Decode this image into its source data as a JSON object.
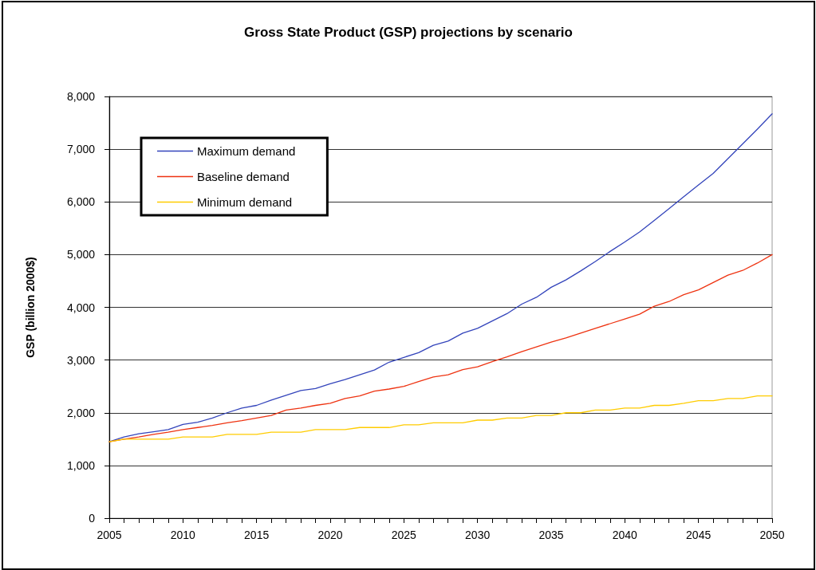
{
  "chart_data": {
    "type": "line",
    "title": "Gross State Product (GSP) projections by scenario",
    "ylabel": "GSP (billion 2000$)",
    "x": [
      2005,
      2006,
      2007,
      2008,
      2009,
      2010,
      2011,
      2012,
      2013,
      2014,
      2015,
      2016,
      2017,
      2018,
      2019,
      2020,
      2021,
      2022,
      2023,
      2024,
      2025,
      2026,
      2027,
      2028,
      2029,
      2030,
      2031,
      2032,
      2033,
      2034,
      2035,
      2036,
      2037,
      2038,
      2039,
      2040,
      2041,
      2042,
      2043,
      2044,
      2045,
      2046,
      2047,
      2048,
      2049,
      2050
    ],
    "series": [
      {
        "name": "Maximum demand",
        "color": "#3344bb",
        "values": [
          1450,
          1540,
          1600,
          1640,
          1680,
          1780,
          1820,
          1900,
          2000,
          2090,
          2140,
          2240,
          2330,
          2420,
          2460,
          2550,
          2630,
          2720,
          2810,
          2960,
          3050,
          3140,
          3280,
          3360,
          3510,
          3600,
          3740,
          3880,
          4060,
          4190,
          4380,
          4520,
          4690,
          4870,
          5060,
          5240,
          5430,
          5650,
          5870,
          6100,
          6320,
          6540,
          6820,
          7100,
          7380,
          7670
        ]
      },
      {
        "name": "Baseline demand",
        "color": "#ee3311",
        "values": [
          1450,
          1500,
          1540,
          1590,
          1630,
          1680,
          1720,
          1760,
          1810,
          1850,
          1900,
          1950,
          2050,
          2090,
          2140,
          2180,
          2270,
          2320,
          2410,
          2450,
          2500,
          2590,
          2680,
          2720,
          2820,
          2870,
          2970,
          3060,
          3160,
          3250,
          3340,
          3420,
          3510,
          3600,
          3690,
          3780,
          3870,
          4020,
          4110,
          4240,
          4330,
          4470,
          4610,
          4700,
          4840,
          5000
        ]
      },
      {
        "name": "Minimum demand",
        "color": "#ffcc00",
        "values": [
          1450,
          1500,
          1500,
          1500,
          1500,
          1540,
          1540,
          1540,
          1590,
          1590,
          1590,
          1630,
          1630,
          1630,
          1680,
          1680,
          1680,
          1720,
          1720,
          1720,
          1770,
          1770,
          1810,
          1810,
          1810,
          1860,
          1860,
          1900,
          1900,
          1950,
          1950,
          2000,
          2000,
          2050,
          2050,
          2090,
          2090,
          2140,
          2140,
          2180,
          2230,
          2230,
          2270,
          2270,
          2320,
          2320
        ]
      }
    ],
    "xlim": [
      2005,
      2050
    ],
    "xticks": [
      2005,
      {
        "value": 2006,
        "label": null
      },
      {
        "value": 2007,
        "label": null
      },
      {
        "value": 2008,
        "label": null
      },
      {
        "value": 2009,
        "label": null
      },
      2010,
      {
        "value": 2011,
        "label": null
      },
      {
        "value": 2012,
        "label": null
      },
      {
        "value": 2013,
        "label": null
      },
      {
        "value": 2014,
        "label": null
      },
      2015,
      {
        "value": 2016,
        "label": null
      },
      {
        "value": 2017,
        "label": null
      },
      {
        "value": 2018,
        "label": null
      },
      {
        "value": 2019,
        "label": null
      },
      2020,
      {
        "value": 2021,
        "label": null
      },
      {
        "value": 2022,
        "label": null
      },
      {
        "value": 2023,
        "label": null
      },
      {
        "value": 2024,
        "label": null
      },
      2025,
      {
        "value": 2026,
        "label": null
      },
      {
        "value": 2027,
        "label": null
      },
      {
        "value": 2028,
        "label": null
      },
      {
        "value": 2029,
        "label": null
      },
      2030,
      {
        "value": 2031,
        "label": null
      },
      {
        "value": 2032,
        "label": null
      },
      {
        "value": 2033,
        "label": null
      },
      {
        "value": 2034,
        "label": null
      },
      2035,
      {
        "value": 2036,
        "label": null
      },
      {
        "value": 2037,
        "label": null
      },
      {
        "value": 2038,
        "label": null
      },
      {
        "value": 2039,
        "label": null
      },
      2040,
      {
        "value": 2041,
        "label": null
      },
      {
        "value": 2042,
        "label": null
      },
      {
        "value": 2043,
        "label": null
      },
      {
        "value": 2044,
        "label": null
      },
      2045,
      {
        "value": 2046,
        "label": null
      },
      {
        "value": 2047,
        "label": null
      },
      {
        "value": 2048,
        "label": null
      },
      {
        "value": 2049,
        "label": null
      },
      2050
    ],
    "ylim": [
      0,
      8000
    ],
    "yticks": [
      0,
      {
        "value": 1000,
        "label": "1,000"
      },
      {
        "value": 2000,
        "label": "2,000"
      },
      {
        "value": 3000,
        "label": "3,000"
      },
      {
        "value": 4000,
        "label": "4,000"
      },
      {
        "value": 5000,
        "label": "5,000"
      },
      {
        "value": 6000,
        "label": "6,000"
      },
      {
        "value": 7000,
        "label": "7,000"
      },
      {
        "value": 8000,
        "label": "8,000"
      }
    ],
    "grid": "y",
    "legend": "top left",
    "marker": "none",
    "line_style": "solid"
  }
}
